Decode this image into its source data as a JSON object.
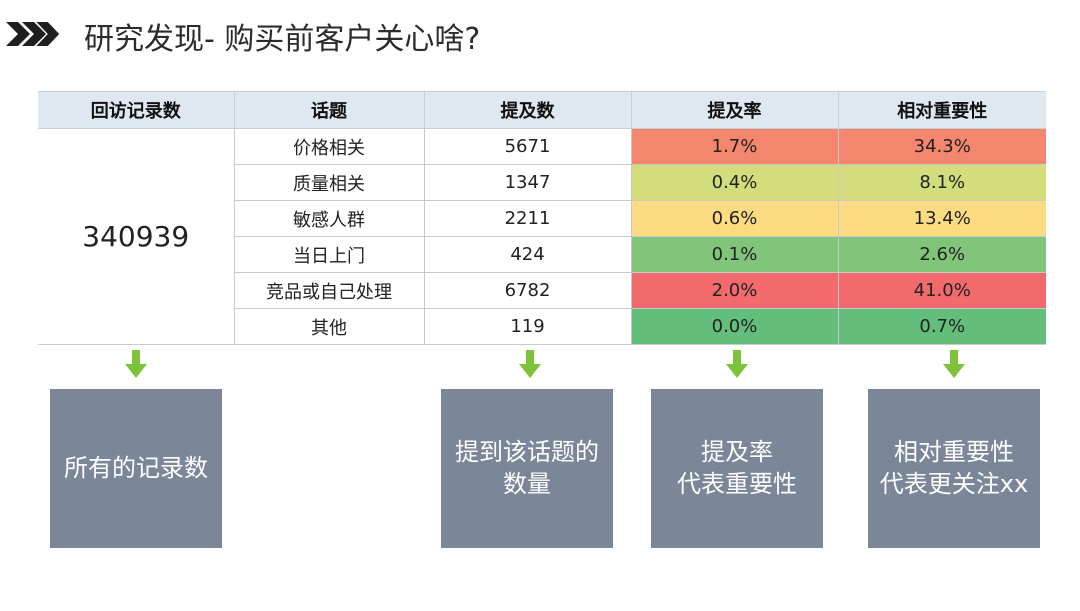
{
  "title": "研究发现- 购买前客户关心啥?",
  "table": {
    "headers": [
      "回访记录数",
      "话题",
      "提及数",
      "提及率",
      "相对重要性"
    ],
    "total_records": "340939",
    "rows": [
      {
        "topic": "价格相关",
        "count": "5671",
        "rate": "1.7%",
        "importance": "34.3%",
        "color": "#f4866e"
      },
      {
        "topic": "质量相关",
        "count": "1347",
        "rate": "0.4%",
        "importance": "8.1%",
        "color": "#d4dd7c"
      },
      {
        "topic": "敏感人群",
        "count": "2211",
        "rate": "0.6%",
        "importance": "13.4%",
        "color": "#fddb82"
      },
      {
        "topic": "当日上门",
        "count": "424",
        "rate": "0.1%",
        "importance": "2.6%",
        "color": "#80c57a"
      },
      {
        "topic": "竞品或自己处理",
        "count": "6782",
        "rate": "2.0%",
        "importance": "41.0%",
        "color": "#f26a6c"
      },
      {
        "topic": "其他",
        "count": "119",
        "rate": "0.0%",
        "importance": "0.7%",
        "color": "#63be7b"
      }
    ]
  },
  "callouts": [
    {
      "text": "所有的记录数"
    },
    {
      "text": "提到该话题的\n数量"
    },
    {
      "text": "提及率\n代表重要性"
    },
    {
      "text": "相对重要性\n代表更关注xx"
    }
  ],
  "colors": {
    "header_bg": "#dfe7f1",
    "callout_bg": "#7b8698",
    "arrow": "#7dc23b",
    "chevron": "#1f1f1f"
  },
  "icons": {
    "title_marker": "double-chevron-right-icon",
    "down_arrow": "down-arrow-icon"
  }
}
